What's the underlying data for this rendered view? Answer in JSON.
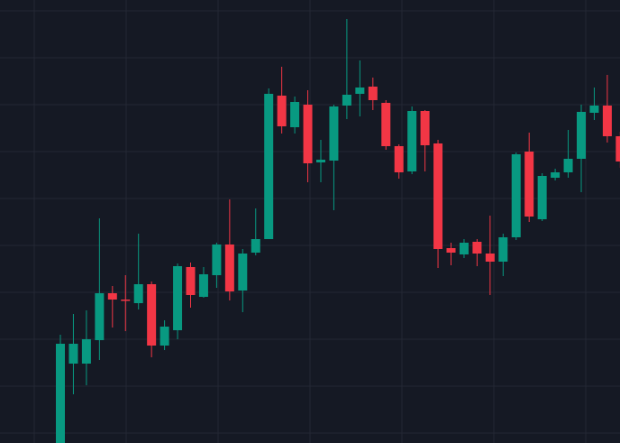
{
  "chart_data": {
    "type": "candlestick",
    "title": "",
    "xlabel": "",
    "ylabel": "",
    "ylim": [
      0,
      491
    ],
    "grid": true,
    "colors": {
      "background": "#151924",
      "grid": "#232734",
      "up": "#089981",
      "down": "#F23645"
    },
    "candles": [
      {
        "x": 0,
        "open": 0,
        "close": 110,
        "high": 120,
        "low": 0
      },
      {
        "x": 1,
        "open": 88,
        "close": 110,
        "high": 143,
        "low": 54
      },
      {
        "x": 2,
        "open": 88,
        "close": 115,
        "high": 147,
        "low": 64
      },
      {
        "x": 3,
        "open": 114,
        "close": 166,
        "high": 249,
        "low": 92
      },
      {
        "x": 4,
        "open": 166,
        "close": 159,
        "high": 174,
        "low": 128
      },
      {
        "x": 5,
        "open": 159,
        "close": 158,
        "high": 186,
        "low": 124
      },
      {
        "x": 6,
        "open": 155,
        "close": 176,
        "high": 232,
        "low": 148
      },
      {
        "x": 7,
        "open": 176,
        "close": 108,
        "high": 179,
        "low": 95
      },
      {
        "x": 8,
        "open": 108,
        "close": 129,
        "high": 136,
        "low": 103
      },
      {
        "x": 9,
        "open": 125,
        "close": 196,
        "high": 199,
        "low": 115
      },
      {
        "x": 10,
        "open": 195,
        "close": 164,
        "high": 200,
        "low": 150
      },
      {
        "x": 11,
        "open": 162,
        "close": 187,
        "high": 195,
        "low": 161
      },
      {
        "x": 12,
        "open": 186,
        "close": 220,
        "high": 222,
        "low": 172
      },
      {
        "x": 13,
        "open": 220,
        "close": 168,
        "high": 270,
        "low": 158
      },
      {
        "x": 14,
        "open": 169,
        "close": 210,
        "high": 215,
        "low": 145
      },
      {
        "x": 15,
        "open": 211,
        "close": 226,
        "high": 260,
        "low": 208
      },
      {
        "x": 16,
        "open": 226,
        "close": 387,
        "high": 393,
        "low": 226
      },
      {
        "x": 17,
        "open": 385,
        "close": 351,
        "high": 417,
        "low": 343
      },
      {
        "x": 18,
        "open": 350,
        "close": 378,
        "high": 384,
        "low": 343
      },
      {
        "x": 19,
        "open": 375,
        "close": 310,
        "high": 391,
        "low": 289
      },
      {
        "x": 20,
        "open": 311,
        "close": 314,
        "high": 336,
        "low": 289
      },
      {
        "x": 21,
        "open": 313,
        "close": 373,
        "high": 375,
        "low": 258
      },
      {
        "x": 22,
        "open": 374,
        "close": 386,
        "high": 470,
        "low": 359
      },
      {
        "x": 23,
        "open": 387,
        "close": 394,
        "high": 424,
        "low": 362
      },
      {
        "x": 24,
        "open": 395,
        "close": 380,
        "high": 405,
        "low": 369
      },
      {
        "x": 25,
        "open": 377,
        "close": 329,
        "high": 380,
        "low": 325
      },
      {
        "x": 26,
        "open": 329,
        "close": 300,
        "high": 331,
        "low": 293
      },
      {
        "x": 27,
        "open": 301,
        "close": 368,
        "high": 373,
        "low": 298
      },
      {
        "x": 28,
        "open": 368,
        "close": 330,
        "high": 369,
        "low": 301
      },
      {
        "x": 29,
        "open": 332,
        "close": 215,
        "high": 336,
        "low": 194
      },
      {
        "x": 30,
        "open": 216,
        "close": 211,
        "high": 222,
        "low": 197
      },
      {
        "x": 31,
        "open": 209,
        "close": 222,
        "high": 226,
        "low": 205
      },
      {
        "x": 32,
        "open": 223,
        "close": 210,
        "high": 226,
        "low": 196
      },
      {
        "x": 33,
        "open": 210,
        "close": 201,
        "high": 252,
        "low": 164
      },
      {
        "x": 34,
        "open": 201,
        "close": 228,
        "high": 232,
        "low": 185
      },
      {
        "x": 35,
        "open": 228,
        "close": 320,
        "high": 322,
        "low": 225
      },
      {
        "x": 36,
        "open": 323,
        "close": 251,
        "high": 344,
        "low": 245
      },
      {
        "x": 37,
        "open": 248,
        "close": 296,
        "high": 299,
        "low": 246
      },
      {
        "x": 38,
        "open": 294,
        "close": 300,
        "high": 304,
        "low": 291
      },
      {
        "x": 39,
        "open": 300,
        "close": 315,
        "high": 347,
        "low": 294
      },
      {
        "x": 40,
        "open": 315,
        "close": 367,
        "high": 375,
        "low": 278
      },
      {
        "x": 41,
        "open": 366,
        "close": 374,
        "high": 394,
        "low": 358
      },
      {
        "x": 42,
        "open": 374,
        "close": 340,
        "high": 408,
        "low": 333
      },
      {
        "x": 43,
        "open": 340,
        "close": 312,
        "high": 345,
        "low": 305
      }
    ]
  }
}
